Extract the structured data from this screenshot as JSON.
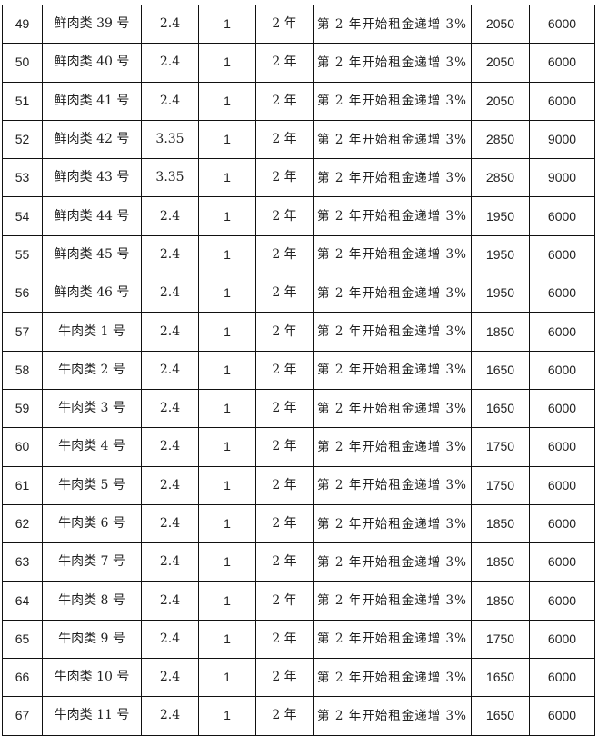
{
  "rows": [
    {
      "no": "49",
      "name": "鲜肉类 39 号",
      "area": "2.4",
      "qty": "1",
      "term": "2 年",
      "note": "第 2 年开始租金递增 3%",
      "rent": "2050",
      "deposit": "6000"
    },
    {
      "no": "50",
      "name": "鲜肉类 40 号",
      "area": "2.4",
      "qty": "1",
      "term": "2 年",
      "note": "第 2 年开始租金递增 3%",
      "rent": "2050",
      "deposit": "6000"
    },
    {
      "no": "51",
      "name": "鲜肉类 41 号",
      "area": "2.4",
      "qty": "1",
      "term": "2 年",
      "note": "第 2 年开始租金递增 3%",
      "rent": "2050",
      "deposit": "6000"
    },
    {
      "no": "52",
      "name": "鲜肉类 42 号",
      "area": "3.35",
      "qty": "1",
      "term": "2 年",
      "note": "第 2 年开始租金递增 3%",
      "rent": "2850",
      "deposit": "9000"
    },
    {
      "no": "53",
      "name": "鲜肉类 43 号",
      "area": "3.35",
      "qty": "1",
      "term": "2 年",
      "note": "第 2 年开始租金递增 3%",
      "rent": "2850",
      "deposit": "9000"
    },
    {
      "no": "54",
      "name": "鲜肉类 44 号",
      "area": "2.4",
      "qty": "1",
      "term": "2 年",
      "note": "第 2 年开始租金递增 3%",
      "rent": "1950",
      "deposit": "6000"
    },
    {
      "no": "55",
      "name": "鲜肉类 45 号",
      "area": "2.4",
      "qty": "1",
      "term": "2 年",
      "note": "第 2 年开始租金递增 3%",
      "rent": "1950",
      "deposit": "6000"
    },
    {
      "no": "56",
      "name": "鲜肉类 46 号",
      "area": "2.4",
      "qty": "1",
      "term": "2 年",
      "note": "第 2 年开始租金递增 3%",
      "rent": "1950",
      "deposit": "6000"
    },
    {
      "no": "57",
      "name": "牛肉类 1 号",
      "area": "2.4",
      "qty": "1",
      "term": "2 年",
      "note": "第 2 年开始租金递增 3%",
      "rent": "1850",
      "deposit": "6000"
    },
    {
      "no": "58",
      "name": "牛肉类 2 号",
      "area": "2.4",
      "qty": "1",
      "term": "2 年",
      "note": "第 2 年开始租金递增 3%",
      "rent": "1650",
      "deposit": "6000"
    },
    {
      "no": "59",
      "name": "牛肉类 3 号",
      "area": "2.4",
      "qty": "1",
      "term": "2 年",
      "note": "第 2 年开始租金递增 3%",
      "rent": "1650",
      "deposit": "6000"
    },
    {
      "no": "60",
      "name": "牛肉类 4 号",
      "area": "2.4",
      "qty": "1",
      "term": "2 年",
      "note": "第 2 年开始租金递增 3%",
      "rent": "1750",
      "deposit": "6000"
    },
    {
      "no": "61",
      "name": "牛肉类 5 号",
      "area": "2.4",
      "qty": "1",
      "term": "2 年",
      "note": "第 2 年开始租金递增 3%",
      "rent": "1750",
      "deposit": "6000"
    },
    {
      "no": "62",
      "name": "牛肉类 6 号",
      "area": "2.4",
      "qty": "1",
      "term": "2 年",
      "note": "第 2 年开始租金递增 3%",
      "rent": "1850",
      "deposit": "6000"
    },
    {
      "no": "63",
      "name": "牛肉类 7 号",
      "area": "2.4",
      "qty": "1",
      "term": "2 年",
      "note": "第 2 年开始租金递增 3%",
      "rent": "1850",
      "deposit": "6000"
    },
    {
      "no": "64",
      "name": "牛肉类 8 号",
      "area": "2.4",
      "qty": "1",
      "term": "2 年",
      "note": "第 2 年开始租金递增 3%",
      "rent": "1850",
      "deposit": "6000"
    },
    {
      "no": "65",
      "name": "牛肉类 9 号",
      "area": "2.4",
      "qty": "1",
      "term": "2 年",
      "note": "第 2 年开始租金递增 3%",
      "rent": "1750",
      "deposit": "6000"
    },
    {
      "no": "66",
      "name": "牛肉类 10 号",
      "area": "2.4",
      "qty": "1",
      "term": "2 年",
      "note": "第 2 年开始租金递增 3%",
      "rent": "1650",
      "deposit": "6000"
    },
    {
      "no": "67",
      "name": "牛肉类 11 号",
      "area": "2.4",
      "qty": "1",
      "term": "2 年",
      "note": "第 2 年开始租金递增 3%",
      "rent": "1650",
      "deposit": "6000"
    }
  ]
}
